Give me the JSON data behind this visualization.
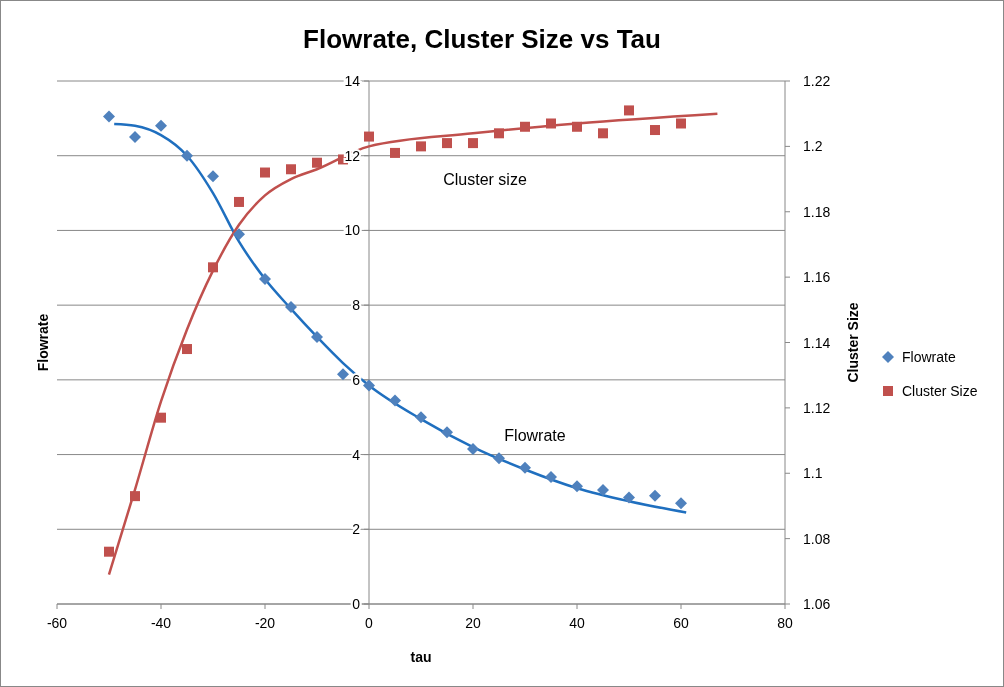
{
  "chart_data": {
    "type": "scatter",
    "title": "Flowrate, Cluster Size vs Tau",
    "xlabel": "tau",
    "ylabel": "Flowrate",
    "y2label": "Cluster Size",
    "xlim": [
      -60,
      80
    ],
    "xticks": [
      -60,
      -40,
      -20,
      0,
      20,
      40,
      60,
      80
    ],
    "ylim": [
      0,
      14
    ],
    "yticks": [
      0,
      2,
      4,
      6,
      8,
      10,
      12,
      14
    ],
    "y2lim": [
      1.06,
      1.22
    ],
    "y2ticks": [
      1.06,
      1.08,
      1.1,
      1.12,
      1.14,
      1.16,
      1.18,
      1.2,
      1.22
    ],
    "grid": "y",
    "legend": "right",
    "series": [
      {
        "name": "Flowrate",
        "marker": "diamond",
        "color": "#4f81bd",
        "x": [
          -50,
          -45,
          -40,
          -35,
          -30,
          -25,
          -20,
          -15,
          -10,
          -5,
          0,
          5,
          10,
          15,
          20,
          25,
          30,
          35,
          40,
          45,
          50,
          55,
          60
        ],
        "values": [
          13.05,
          12.5,
          12.8,
          12.0,
          11.45,
          9.9,
          8.7,
          7.95,
          7.15,
          6.15,
          5.85,
          5.45,
          5.0,
          4.6,
          4.15,
          3.9,
          3.65,
          3.4,
          3.15,
          3.05,
          2.85,
          2.9,
          2.7
        ]
      },
      {
        "name": "Cluster Size",
        "marker": "square",
        "axis": "y2",
        "color": "#c0504d",
        "x": [
          -50,
          -45,
          -40,
          -35,
          -30,
          -25,
          -20,
          -15,
          -10,
          -5,
          0,
          5,
          10,
          15,
          20,
          25,
          30,
          35,
          40,
          45,
          50,
          55,
          60
        ],
        "values": [
          1.076,
          1.093,
          1.117,
          1.138,
          1.163,
          1.183,
          1.192,
          1.193,
          1.195,
          1.196,
          1.203,
          1.198,
          1.2,
          1.201,
          1.201,
          1.204,
          1.206,
          1.207,
          1.206,
          1.204,
          1.211,
          1.205,
          1.207
        ]
      },
      {
        "type": "line",
        "color": "#1f6fbf",
        "x": [
          -49,
          -45,
          -40,
          -35,
          -30,
          -25,
          -20,
          -15,
          -10,
          -5,
          0,
          10,
          20,
          30,
          40,
          50,
          61
        ],
        "values": [
          12.85,
          12.8,
          12.55,
          12.0,
          11.0,
          9.7,
          8.7,
          7.9,
          7.15,
          6.45,
          5.85,
          4.95,
          4.2,
          3.6,
          3.1,
          2.75,
          2.45
        ]
      },
      {
        "type": "line",
        "axis": "y2",
        "color": "#c0504d",
        "x": [
          -50,
          -45,
          -40,
          -35,
          -30,
          -25,
          -20,
          -15,
          -10,
          0,
          20,
          40,
          67
        ],
        "values": [
          1.069,
          1.095,
          1.122,
          1.144,
          1.162,
          1.176,
          1.185,
          1.19,
          1.193,
          1.2,
          1.204,
          1.207,
          1.21
        ]
      }
    ],
    "annotations": [
      "Cluster size",
      "Flowrate"
    ]
  }
}
